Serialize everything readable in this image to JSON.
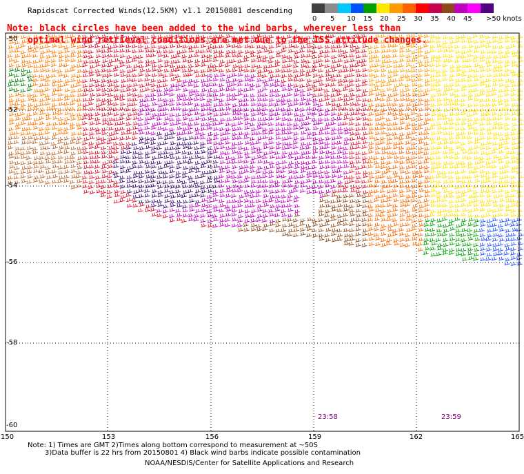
{
  "title": "Rapidscat Corrected Winds(12.5KM) v1.1 20150801 descending",
  "note": {
    "line1": "Note: black circles have been added to the wind barbs, wherever less than",
    "line2": "optimal wind retrieval conditions are met due to the ISS attitude changes."
  },
  "legend": {
    "labels": [
      "0",
      "5",
      "10",
      "15",
      "20",
      "25",
      "30",
      "35",
      "40",
      "45",
      ">50 knots"
    ],
    "colors": [
      "#404040",
      "#8c8c8c",
      "#00c8ff",
      "#0050ff",
      "#00a000",
      "#ffe800",
      "#ff9900",
      "#ff6000",
      "#ff0000",
      "#c80050",
      "#8c4a1a",
      "#c000c0",
      "#ff00ff",
      "#500080"
    ]
  },
  "map": {
    "lat_labels": [
      "-50",
      "-52",
      "-54",
      "-56",
      "-58",
      "-60"
    ],
    "lon_labels": [
      "150",
      "153",
      "156",
      "159",
      "162",
      "165"
    ],
    "time_labels": [
      "23:58",
      "23:59"
    ]
  },
  "footer": {
    "line1": "Note: 1) Times are GMT 2)Times along bottom correspond to measurement at ~50S",
    "line2": "3)Data buffer is 22 hrs from 20150801 4) Black wind barbs indicate possible contamination",
    "line3": "NOAA/NESDIS/Center for Satellite Applications and Research"
  }
}
